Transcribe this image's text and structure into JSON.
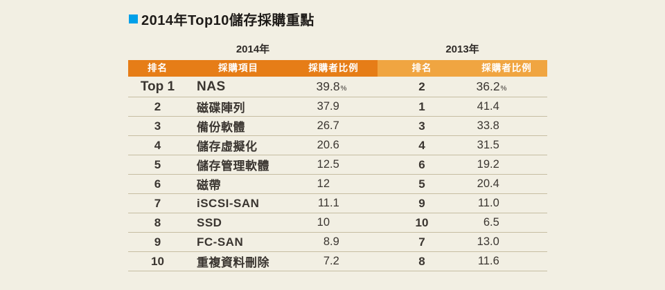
{
  "title": "2014年Top10儲存採購重點",
  "groups": {
    "y2014": "2014年",
    "y2013": "2013年"
  },
  "table": {
    "columns": {
      "rank": "排名",
      "item": "採購項目",
      "ratio": "採購者比例",
      "rank2013": "排名",
      "ratio2013": "採購者比例"
    },
    "rows": [
      {
        "rank_2014": "Top 1",
        "item": "NAS",
        "value_2014": "39.8",
        "suffix_2014": "%",
        "rank_2013": "2",
        "value_2013": "36.2",
        "suffix_2013": "%"
      },
      {
        "rank_2014": "2",
        "item": "磁碟陣列",
        "value_2014": "37.9",
        "rank_2013": "1",
        "value_2013": "41.4"
      },
      {
        "rank_2014": "3",
        "item": "備份軟體",
        "value_2014": "26.7",
        "rank_2013": "3",
        "value_2013": "33.8"
      },
      {
        "rank_2014": "4",
        "item": "儲存虛擬化",
        "value_2014": "20.6",
        "rank_2013": "4",
        "value_2013": "31.5"
      },
      {
        "rank_2014": "5",
        "item": "儲存管理軟體",
        "value_2014": "12.5",
        "rank_2013": "6",
        "value_2013": "19.2"
      },
      {
        "rank_2014": "6",
        "item": "磁帶",
        "value_2014": "12",
        "rank_2013": "5",
        "value_2013": "20.4"
      },
      {
        "rank_2014": "7",
        "item": "iSCSI-SAN",
        "value_2014": "11.1",
        "rank_2013": "9",
        "value_2013": "11.0"
      },
      {
        "rank_2014": "8",
        "item": "SSD",
        "value_2014": "10",
        "rank_2013": "10",
        "value_2013": "6.5"
      },
      {
        "rank_2014": "9",
        "item": "FC-SAN",
        "value_2014": "8.9",
        "rank_2013": "7",
        "value_2013": "13.0"
      },
      {
        "rank_2014": "10",
        "item": "重複資料刪除",
        "value_2014": "7.2",
        "rank_2013": "8",
        "value_2013": "11.6"
      }
    ]
  },
  "colors": {
    "background": "#f2efe3",
    "bullet_blue": "#00a0e9",
    "header_dark_orange": "#e67d17",
    "header_light_orange": "#f0a541",
    "divider": "#c6bda1",
    "text": "#3a3530"
  },
  "chart_data": {
    "type": "table",
    "title": "2014年Top10儲存採購重點",
    "columns": [
      "2014年 排名",
      "採購項目",
      "2014年 採購者比例(%)",
      "2013年 排名",
      "2013年 採購者比例(%)"
    ],
    "rows": [
      [
        "Top 1",
        "NAS",
        39.8,
        2,
        36.2
      ],
      [
        "2",
        "磁碟陣列",
        37.9,
        1,
        41.4
      ],
      [
        "3",
        "備份軟體",
        26.7,
        3,
        33.8
      ],
      [
        "4",
        "儲存虛擬化",
        20.6,
        4,
        31.5
      ],
      [
        "5",
        "儲存管理軟體",
        12.5,
        6,
        19.2
      ],
      [
        "6",
        "磁帶",
        12,
        5,
        20.4
      ],
      [
        "7",
        "iSCSI-SAN",
        11.1,
        9,
        11.0
      ],
      [
        "8",
        "SSD",
        10,
        10,
        6.5
      ],
      [
        "9",
        "FC-SAN",
        8.9,
        7,
        13.0
      ],
      [
        "10",
        "重複資料刪除",
        7.2,
        8,
        11.6
      ]
    ]
  }
}
